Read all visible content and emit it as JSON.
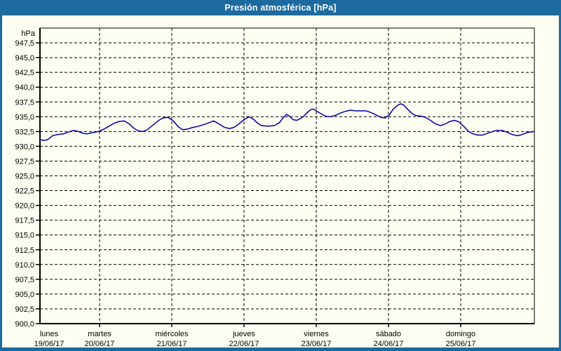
{
  "window": {
    "title_bar": {
      "title": "Presión atmosférica [hPa]"
    },
    "frame_color": "#1d6a9e",
    "background_color": "#fcfef2"
  },
  "chart_data": {
    "type": "line",
    "title": "Presión atmosférica [hPa]",
    "grid": "dashed",
    "legend": "none",
    "y_axis": {
      "unit_label": "hPa",
      "min": 900.0,
      "max": 950.0,
      "tick_step": 2.5,
      "tick_labels": [
        "900,0",
        "902,5",
        "905,0",
        "907,5",
        "910,0",
        "912,5",
        "915,0",
        "917,5",
        "920,0",
        "922,5",
        "925,0",
        "927,5",
        "930,0",
        "932,5",
        "935,0",
        "937,5",
        "940,0",
        "942,5",
        "945,0",
        "947,5"
      ]
    },
    "x_axis": {
      "range_days": [
        0.17,
        7.02
      ],
      "days": [
        {
          "name": "lunes",
          "date": "19/06/17"
        },
        {
          "name": "martes",
          "date": "20/06/17"
        },
        {
          "name": "miércoles",
          "date": "21/06/17"
        },
        {
          "name": "jueves",
          "date": "22/06/17"
        },
        {
          "name": "viernes",
          "date": "23/06/17"
        },
        {
          "name": "sábado",
          "date": "24/06/17"
        },
        {
          "name": "domingo",
          "date": "25/06/17"
        }
      ]
    },
    "series": [
      {
        "name": "Presión atmosférica",
        "color": "#0000a8",
        "points_days_hpa": [
          [
            0.17,
            931.2
          ],
          [
            0.22,
            931.0
          ],
          [
            0.28,
            931.1
          ],
          [
            0.35,
            931.8
          ],
          [
            0.42,
            932.0
          ],
          [
            0.5,
            932.1
          ],
          [
            0.57,
            932.4
          ],
          [
            0.64,
            932.7
          ],
          [
            0.71,
            932.5
          ],
          [
            0.77,
            932.2
          ],
          [
            0.83,
            932.1
          ],
          [
            0.9,
            932.3
          ],
          [
            0.98,
            932.5
          ],
          [
            1.06,
            932.9
          ],
          [
            1.13,
            933.4
          ],
          [
            1.2,
            933.9
          ],
          [
            1.27,
            934.2
          ],
          [
            1.34,
            934.3
          ],
          [
            1.41,
            933.8
          ],
          [
            1.48,
            933.0
          ],
          [
            1.54,
            932.6
          ],
          [
            1.6,
            932.5
          ],
          [
            1.66,
            932.8
          ],
          [
            1.74,
            933.6
          ],
          [
            1.82,
            934.4
          ],
          [
            1.88,
            934.8
          ],
          [
            1.95,
            934.9
          ],
          [
            2.02,
            934.3
          ],
          [
            2.09,
            933.3
          ],
          [
            2.15,
            932.8
          ],
          [
            2.21,
            932.9
          ],
          [
            2.29,
            933.2
          ],
          [
            2.37,
            933.4
          ],
          [
            2.45,
            933.7
          ],
          [
            2.52,
            934.0
          ],
          [
            2.58,
            934.3
          ],
          [
            2.65,
            933.8
          ],
          [
            2.73,
            933.2
          ],
          [
            2.8,
            933.0
          ],
          [
            2.86,
            933.2
          ],
          [
            2.93,
            933.8
          ],
          [
            3.0,
            934.5
          ],
          [
            3.07,
            935.0
          ],
          [
            3.13,
            934.6
          ],
          [
            3.18,
            934.0
          ],
          [
            3.24,
            933.5
          ],
          [
            3.33,
            933.4
          ],
          [
            3.42,
            933.5
          ],
          [
            3.49,
            934.0
          ],
          [
            3.54,
            934.8
          ],
          [
            3.59,
            935.4
          ],
          [
            3.63,
            935.1
          ],
          [
            3.68,
            934.5
          ],
          [
            3.73,
            934.4
          ],
          [
            3.8,
            934.8
          ],
          [
            3.86,
            935.5
          ],
          [
            3.92,
            936.2
          ],
          [
            3.96,
            936.3
          ],
          [
            4.01,
            935.9
          ],
          [
            4.07,
            935.5
          ],
          [
            4.13,
            935.1
          ],
          [
            4.19,
            935.0
          ],
          [
            4.26,
            935.2
          ],
          [
            4.33,
            935.6
          ],
          [
            4.4,
            935.9
          ],
          [
            4.47,
            936.1
          ],
          [
            4.54,
            936.0
          ],
          [
            4.62,
            936.0
          ],
          [
            4.69,
            936.0
          ],
          [
            4.76,
            935.7
          ],
          [
            4.83,
            935.3
          ],
          [
            4.89,
            934.9
          ],
          [
            4.95,
            934.8
          ],
          [
            5.01,
            935.3
          ],
          [
            5.06,
            936.2
          ],
          [
            5.12,
            936.9
          ],
          [
            5.17,
            937.2
          ],
          [
            5.21,
            937.0
          ],
          [
            5.27,
            936.2
          ],
          [
            5.33,
            935.5
          ],
          [
            5.38,
            935.2
          ],
          [
            5.45,
            935.1
          ],
          [
            5.51,
            934.9
          ],
          [
            5.58,
            934.4
          ],
          [
            5.65,
            933.8
          ],
          [
            5.72,
            933.5
          ],
          [
            5.79,
            933.8
          ],
          [
            5.85,
            934.2
          ],
          [
            5.92,
            934.4
          ],
          [
            5.98,
            934.1
          ],
          [
            6.04,
            933.4
          ],
          [
            6.11,
            932.5
          ],
          [
            6.17,
            932.1
          ],
          [
            6.23,
            931.9
          ],
          [
            6.3,
            931.9
          ],
          [
            6.37,
            932.2
          ],
          [
            6.44,
            932.5
          ],
          [
            6.5,
            932.7
          ],
          [
            6.57,
            932.7
          ],
          [
            6.64,
            932.4
          ],
          [
            6.71,
            932.0
          ],
          [
            6.78,
            931.8
          ],
          [
            6.83,
            931.9
          ],
          [
            6.89,
            932.2
          ],
          [
            6.95,
            932.4
          ],
          [
            7.02,
            932.5
          ]
        ]
      }
    ]
  }
}
